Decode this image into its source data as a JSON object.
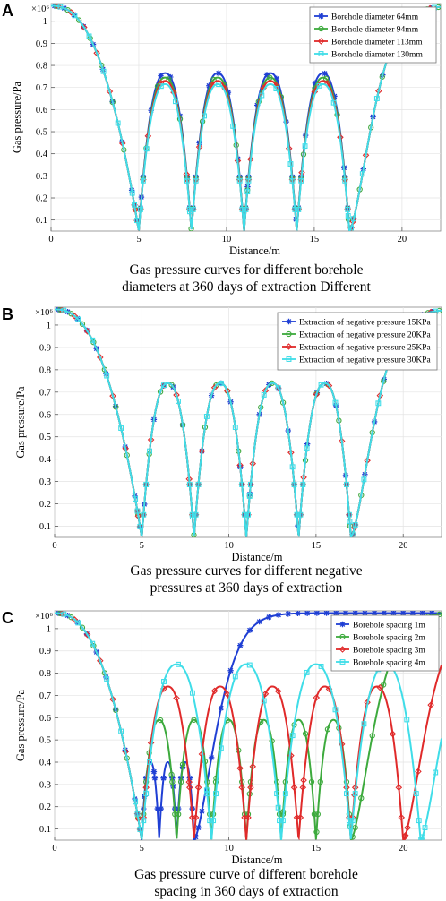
{
  "panels": [
    {
      "letter": "A",
      "caption_lines": [
        "Gas pressure curves for different borehole",
        "diameters at 360 days of extraction Different"
      ]
    },
    {
      "letter": "B",
      "caption_lines": [
        "Gas pressure curves for different negative",
        "pressures at 360 days of extraction"
      ]
    },
    {
      "letter": "C",
      "caption_lines": [
        "Gas pressure curve of different borehole",
        "spacing in 360 days of extraction"
      ]
    }
  ],
  "chart_data": [
    {
      "type": "line",
      "xlabel": "Distance/m",
      "ylabel": "Gas pressure/Pa",
      "y_multiplier": "×10⁶",
      "xlim": [
        0,
        22.2
      ],
      "ylim": [
        0.05,
        1.08
      ],
      "xticks": [
        0,
        5,
        10,
        15,
        20
      ],
      "yticks": [
        0.1,
        0.2,
        0.3,
        0.4,
        0.5,
        0.6,
        0.7,
        0.8,
        0.9,
        1
      ],
      "legend_position": "top-right",
      "boreholes": [
        5,
        8,
        11,
        14,
        17
      ],
      "series": [
        {
          "name": "Borehole diameter 64mm",
          "color": "#1f3fd4",
          "marker": "star",
          "peak": 0.765
        },
        {
          "name": "Borehole diameter 94mm",
          "color": "#3daa3d",
          "marker": "circle",
          "peak": 0.745
        },
        {
          "name": "Borehole diameter 113mm",
          "color": "#e02a2a",
          "marker": "diamond",
          "peak": 0.73
        },
        {
          "name": "Borehole diameter 130mm",
          "color": "#3fdde8",
          "marker": "square",
          "peak": 0.715
        }
      ]
    },
    {
      "type": "line",
      "xlabel": "Distance/m",
      "ylabel": "Gas pressure/Pa",
      "y_multiplier": "×10⁶",
      "xlim": [
        0,
        22.2
      ],
      "ylim": [
        0.05,
        1.08
      ],
      "xticks": [
        0,
        5,
        10,
        15,
        20
      ],
      "yticks": [
        0.1,
        0.2,
        0.3,
        0.4,
        0.5,
        0.6,
        0.7,
        0.8,
        0.9,
        1
      ],
      "legend_position": "top-right",
      "boreholes": [
        5,
        8,
        11,
        14,
        17
      ],
      "series": [
        {
          "name": "Extraction of negative pressure 15KPa",
          "color": "#1f3fd4",
          "marker": "star",
          "peak": 0.74
        },
        {
          "name": "Extraction of negative pressure 20KPa",
          "color": "#3daa3d",
          "marker": "circle",
          "peak": 0.74
        },
        {
          "name": "Extraction of negative pressure 25KPa",
          "color": "#e02a2a",
          "marker": "diamond",
          "peak": 0.74
        },
        {
          "name": "Extraction of negative pressure 30KPa",
          "color": "#3fdde8",
          "marker": "square",
          "peak": 0.74
        }
      ]
    },
    {
      "type": "line",
      "xlabel": "Distance/m",
      "ylabel": "Gas pressure/Pa",
      "y_multiplier": "×10⁶",
      "xlim": [
        0,
        22.2
      ],
      "ylim": [
        0.05,
        1.08
      ],
      "xticks": [
        0,
        5,
        10,
        15,
        20
      ],
      "yticks": [
        0.1,
        0.2,
        0.3,
        0.4,
        0.5,
        0.6,
        0.7,
        0.8,
        0.9,
        1
      ],
      "legend_position": "top-right",
      "series": [
        {
          "name": "Borehole spacing 1m",
          "color": "#1f3fd4",
          "marker": "star",
          "boreholes": [
            5,
            6,
            7,
            8
          ],
          "peak": 0.4
        },
        {
          "name": "Borehole spacing 2m",
          "color": "#3daa3d",
          "marker": "circle",
          "boreholes": [
            5,
            7,
            9,
            11,
            13,
            15,
            17
          ],
          "peak": 0.59
        },
        {
          "name": "Borehole spacing 3m",
          "color": "#e02a2a",
          "marker": "diamond",
          "boreholes": [
            5,
            8,
            11,
            14,
            17,
            20
          ],
          "peak": 0.74
        },
        {
          "name": "Borehole spacing 4m",
          "color": "#3fdde8",
          "marker": "square",
          "boreholes": [
            5,
            9,
            13,
            17,
            21
          ],
          "peak": 0.84
        }
      ]
    }
  ]
}
